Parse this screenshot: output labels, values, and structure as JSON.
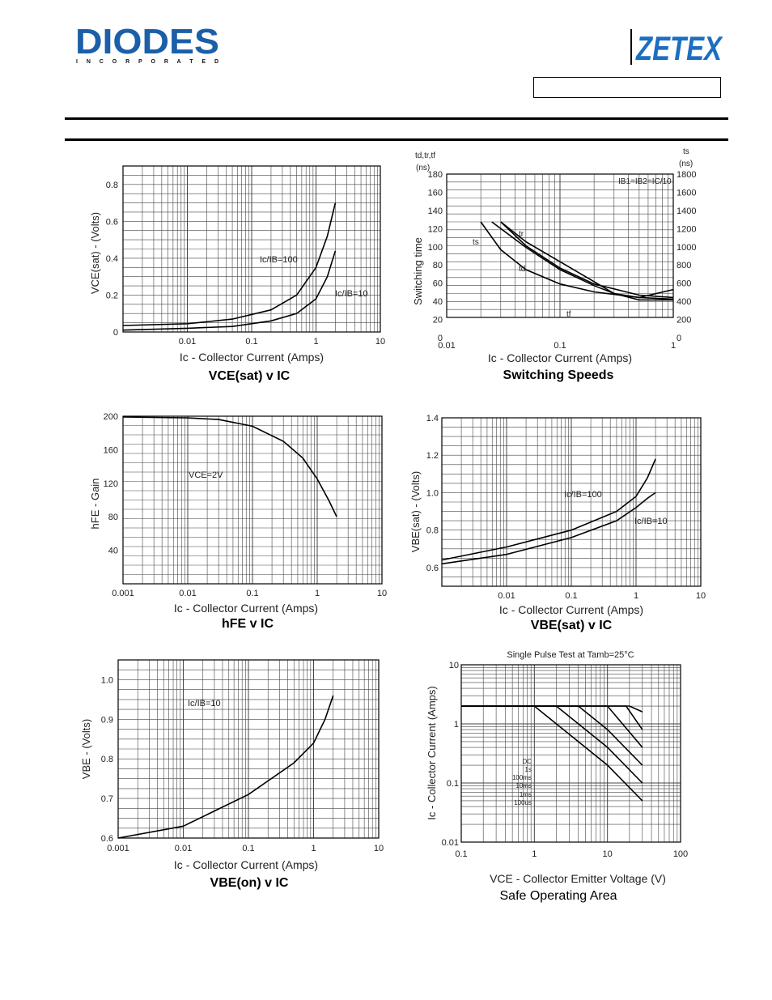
{
  "header": {
    "diodes_logo_text": "DIODES",
    "diodes_logo_sub": "I N C O R P O R A T E D",
    "zetex_logo_text": "ZETEX",
    "colors": {
      "diodes_blue": "#1a5fa8",
      "zetex_blue": "#1c6fc0"
    }
  },
  "captions": {
    "vcesat": "VCE(sat) v IC",
    "switching": "Switching Speeds",
    "hfe": "hFE v IC",
    "vbesat": "VBE(sat) v IC",
    "vbeon": "VBE(on) v IC",
    "soa": "Safe Operating Area"
  },
  "chart_data": [
    {
      "id": "vcesat",
      "type": "line",
      "xscale": "log",
      "xlim": [
        0.001,
        10
      ],
      "ylim": [
        0,
        0.9
      ],
      "ylabel": "VCE(sat) - (Volts)",
      "xlabel": "Ic - Collector Current (Amps)",
      "xticks": [
        "0.01",
        "0.1",
        "1",
        "10"
      ],
      "yticks": [
        "0",
        "0.2",
        "0.4",
        "0.6",
        "0.8"
      ],
      "annotations": [
        "Ic/IB=100",
        "Ic/IB=10"
      ],
      "series": [
        {
          "name": "Ic/IB=100",
          "x": [
            0.001,
            0.01,
            0.05,
            0.2,
            0.5,
            1,
            1.5,
            2
          ],
          "y": [
            0.035,
            0.045,
            0.07,
            0.12,
            0.2,
            0.35,
            0.52,
            0.7
          ]
        },
        {
          "name": "Ic/IB=10",
          "x": [
            0.001,
            0.01,
            0.05,
            0.2,
            0.5,
            1,
            1.5,
            2
          ],
          "y": [
            0.01,
            0.02,
            0.03,
            0.06,
            0.1,
            0.18,
            0.3,
            0.44
          ]
        }
      ]
    },
    {
      "id": "switching",
      "type": "line",
      "xscale": "log",
      "xlim": [
        0.01,
        1
      ],
      "ylim": [
        0,
        180
      ],
      "y2lim": [
        0,
        1800
      ],
      "ylabel": "Switching time",
      "ylabel_top": "td,tr,tf",
      "ylabel_top_unit": "(ns)",
      "y2label_top": "ts",
      "y2label_top_unit": "(ns)",
      "xlabel": "Ic - Collector Current (Amps)",
      "xticks": [
        "0.01",
        "0.1",
        "1"
      ],
      "yticks": [
        "0",
        "20",
        "40",
        "60",
        "80",
        "100",
        "120",
        "140",
        "160",
        "180"
      ],
      "y2ticks": [
        "0",
        "200",
        "400",
        "600",
        "800",
        "1000",
        "1200",
        "1400",
        "1600",
        "1800"
      ],
      "annotations": [
        "IB1=IB2=IC/10"
      ],
      "series": [
        {
          "name": "ts",
          "x": [
            0.02,
            0.03,
            0.05,
            0.1,
            0.2,
            0.5,
            1
          ],
          "y": [
            120,
            85,
            60,
            42,
            32,
            25,
            23
          ]
        },
        {
          "name": "tr",
          "x": [
            0.03,
            0.05,
            0.1,
            0.2,
            0.3,
            0.5,
            1
          ],
          "y": [
            120,
            95,
            70,
            45,
            30,
            22,
            22
          ]
        },
        {
          "name": "td",
          "x": [
            0.025,
            0.05,
            0.1,
            0.2,
            0.3,
            0.5,
            1
          ],
          "y": [
            120,
            88,
            60,
            40,
            30,
            25,
            35
          ]
        },
        {
          "name": "tf",
          "x": [
            0.03,
            0.05,
            0.1,
            0.2,
            0.5,
            1
          ],
          "y": [
            120,
            90,
            62,
            42,
            28,
            25
          ]
        }
      ]
    },
    {
      "id": "hfe",
      "type": "line",
      "xscale": "log",
      "xlim": [
        0.001,
        10
      ],
      "ylim": [
        0,
        200
      ],
      "ylabel": "hFE - Gain",
      "xlabel": "Ic - Collector Current (Amps)",
      "xticks": [
        "0.001",
        "0.01",
        "0.1",
        "1",
        "10"
      ],
      "yticks": [
        "40",
        "80",
        "120",
        "160",
        "200"
      ],
      "annotations": [
        "VCE=2V"
      ],
      "series": [
        {
          "name": "VCE=2V",
          "x": [
            0.001,
            0.01,
            0.03,
            0.1,
            0.3,
            0.6,
            1,
            1.5,
            2
          ],
          "y": [
            199,
            198,
            196,
            188,
            170,
            150,
            125,
            100,
            80
          ]
        }
      ]
    },
    {
      "id": "vbesat",
      "type": "line",
      "xscale": "log",
      "xlim": [
        0.001,
        10
      ],
      "ylim": [
        0.5,
        1.4
      ],
      "ylabel": "VBE(sat) - (Volts)",
      "xlabel": "Ic - Collector Current (Amps)",
      "xticks": [
        "0.01",
        "0.1",
        "1",
        "10"
      ],
      "yticks": [
        "0.6",
        "0.8",
        "1.0",
        "1.2",
        "1.4"
      ],
      "annotations": [
        "Ic/IB=100",
        "Ic/IB=10"
      ],
      "series": [
        {
          "name": "Ic/IB=100",
          "x": [
            0.001,
            0.01,
            0.1,
            0.5,
            1,
            1.5,
            2
          ],
          "y": [
            0.64,
            0.71,
            0.8,
            0.9,
            0.98,
            1.08,
            1.18
          ]
        },
        {
          "name": "Ic/IB=10",
          "x": [
            0.001,
            0.01,
            0.1,
            0.5,
            1,
            1.5,
            2
          ],
          "y": [
            0.62,
            0.67,
            0.76,
            0.85,
            0.92,
            0.97,
            1.0
          ]
        }
      ]
    },
    {
      "id": "vbeon",
      "type": "line",
      "xscale": "log",
      "xlim": [
        0.001,
        10
      ],
      "ylim": [
        0.6,
        1.05
      ],
      "ylabel": "VBE - (Volts)",
      "xlabel": "Ic - Collector Current (Amps)",
      "xticks": [
        "0.001",
        "0.01",
        "0.1",
        "1",
        "10"
      ],
      "yticks": [
        "0.6",
        "0.7",
        "0.8",
        "0.9",
        "1.0"
      ],
      "annotations": [
        "Ic/IB=10"
      ],
      "series": [
        {
          "name": "Ic/IB=10",
          "x": [
            0.001,
            0.01,
            0.1,
            0.5,
            1,
            1.5,
            2
          ],
          "y": [
            0.6,
            0.63,
            0.71,
            0.79,
            0.84,
            0.9,
            0.96
          ]
        }
      ]
    },
    {
      "id": "soa",
      "type": "line",
      "xscale": "log",
      "yscale": "log",
      "xlim": [
        0.1,
        100
      ],
      "ylim": [
        0.01,
        10
      ],
      "title": "Single Pulse Test at Tamb=25°C",
      "ylabel": "Ic - Collector Current (Amps)",
      "xlabel": "VCE - Collector Emitter Voltage (V)",
      "xticks": [
        "0.1",
        "1",
        "10",
        "100"
      ],
      "yticks": [
        "0.01",
        "0.1",
        "1",
        "10"
      ],
      "annotations": [
        "DC",
        "1s",
        "100ms",
        "10ms",
        "1ms",
        "100us"
      ],
      "series": [
        {
          "name": "DC",
          "x": [
            0.1,
            1,
            10,
            30
          ],
          "y": [
            2,
            2,
            0.2,
            0.05
          ]
        },
        {
          "name": "1s",
          "x": [
            0.1,
            2,
            10,
            30
          ],
          "y": [
            2,
            2,
            0.4,
            0.1
          ]
        },
        {
          "name": "100ms",
          "x": [
            0.1,
            4,
            10,
            30
          ],
          "y": [
            2,
            2,
            0.8,
            0.2
          ]
        },
        {
          "name": "10ms",
          "x": [
            0.1,
            10,
            30
          ],
          "y": [
            2,
            2,
            0.4
          ]
        },
        {
          "name": "1ms",
          "x": [
            0.1,
            18,
            30
          ],
          "y": [
            2,
            2,
            0.8
          ]
        },
        {
          "name": "100us",
          "x": [
            0.1,
            20,
            30
          ],
          "y": [
            2,
            2,
            1.6
          ]
        }
      ]
    }
  ]
}
